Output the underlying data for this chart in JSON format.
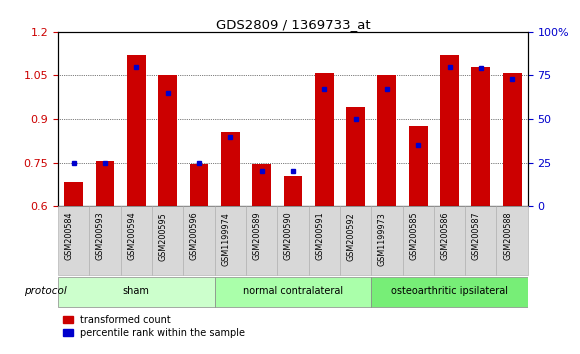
{
  "title": "GDS2809 / 1369733_at",
  "samples": [
    "GSM200584",
    "GSM200593",
    "GSM200594",
    "GSM200595",
    "GSM200596",
    "GSM1199974",
    "GSM200589",
    "GSM200590",
    "GSM200591",
    "GSM200592",
    "GSM1199973",
    "GSM200585",
    "GSM200586",
    "GSM200587",
    "GSM200588"
  ],
  "red_values": [
    0.685,
    0.755,
    1.12,
    1.05,
    0.745,
    0.855,
    0.745,
    0.705,
    1.06,
    0.94,
    1.05,
    0.875,
    1.12,
    1.08,
    1.06
  ],
  "blue_values": [
    25,
    25,
    80,
    65,
    25,
    40,
    20,
    20,
    67,
    50,
    67,
    35,
    80,
    79,
    73
  ],
  "groups": [
    {
      "label": "sham",
      "start": 0,
      "end": 5
    },
    {
      "label": "normal contralateral",
      "start": 5,
      "end": 10
    },
    {
      "label": "osteoarthritic ipsilateral",
      "start": 10,
      "end": 15
    }
  ],
  "group_colors": [
    "#ccffcc",
    "#aaffaa",
    "#77ee77"
  ],
  "ylim_left": [
    0.6,
    1.2
  ],
  "ylim_right": [
    0,
    100
  ],
  "yticks_left": [
    0.6,
    0.75,
    0.9,
    1.05,
    1.2
  ],
  "ytick_labels_left": [
    "0.6",
    "0.75",
    "0.9",
    "1.05",
    "1.2"
  ],
  "yticks_right": [
    0,
    25,
    50,
    75,
    100
  ],
  "ytick_labels_right": [
    "0",
    "25",
    "50",
    "75",
    "100%"
  ],
  "left_color": "#cc0000",
  "right_color": "#0000cc",
  "bar_color": "#cc0000",
  "dot_color": "#0000cc",
  "baseline": 0.6,
  "protocol_label": "protocol",
  "legend_labels": [
    "transformed count",
    "percentile rank within the sample"
  ]
}
